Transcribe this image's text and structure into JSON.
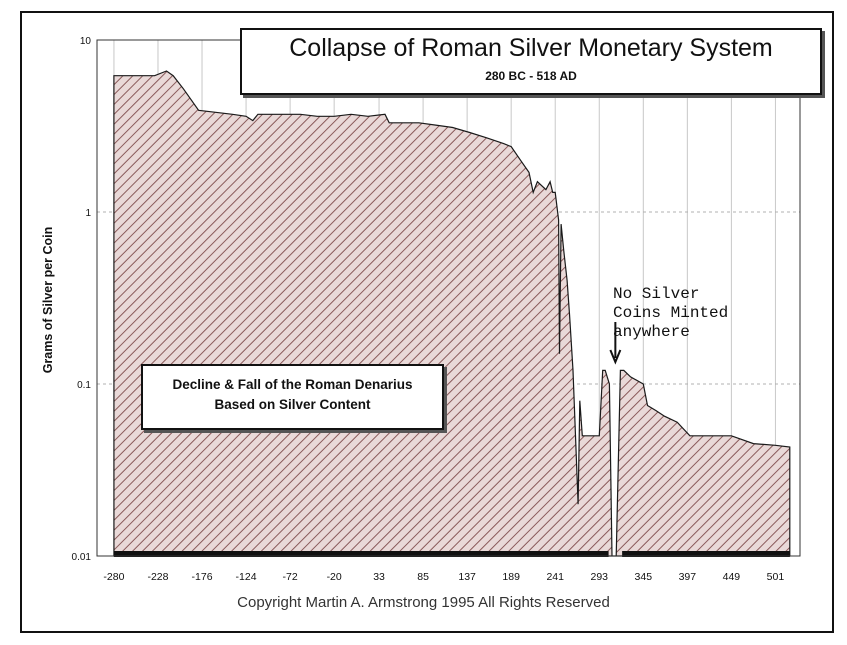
{
  "chart_data": {
    "type": "area",
    "title": "Collapse of Roman Silver Monetary System",
    "subtitle": "280 BC - 518 AD",
    "ylabel": "Grams of Silver per Coin",
    "xlabel": "",
    "y_scale": "log",
    "ylim": [
      0.01,
      10
    ],
    "xlim": [
      -300,
      530
    ],
    "y_ticks": [
      "10",
      "1",
      "0.1",
      "0.01"
    ],
    "x_ticks": [
      "-280",
      "-228",
      "-176",
      "-124",
      "-72",
      "-20",
      "33",
      "85",
      "137",
      "189",
      "241",
      "293",
      "345",
      "397",
      "449",
      "501"
    ],
    "grid": true,
    "colors": {
      "fill": "#e9d9d8",
      "hatch": "#8a5a5a",
      "outline": "#1a1a1a"
    },
    "series": [
      {
        "x": [
          -280,
          -232,
          -218,
          -210,
          -198,
          -180,
          -160,
          -140,
          -124,
          -116,
          -110,
          -100,
          -80,
          -60,
          -40,
          -20,
          0,
          20,
          40,
          45,
          60,
          80,
          100,
          120,
          140,
          160,
          180,
          189,
          200,
          210,
          215,
          220,
          230,
          235,
          238,
          241,
          245,
          246,
          248,
          251,
          255,
          258,
          262,
          265,
          268,
          270,
          273,
          277,
          282,
          288,
          293,
          297,
          300,
          305,
          308,
          313,
          318,
          322,
          330,
          345,
          350,
          360,
          370,
          385,
          400,
          420,
          449,
          475,
          501,
          518
        ],
        "y": [
          6.2,
          6.2,
          6.6,
          6.2,
          5.2,
          3.9,
          3.8,
          3.7,
          3.6,
          3.4,
          3.7,
          3.7,
          3.7,
          3.7,
          3.6,
          3.6,
          3.7,
          3.6,
          3.7,
          3.3,
          3.3,
          3.3,
          3.2,
          3.1,
          2.9,
          2.7,
          2.5,
          2.4,
          2.0,
          1.7,
          1.3,
          1.5,
          1.35,
          1.5,
          1.3,
          1.3,
          0.9,
          0.15,
          0.85,
          0.6,
          0.4,
          0.25,
          0.12,
          0.05,
          0.02,
          0.08,
          0.05,
          0.05,
          0.05,
          0.05,
          0.05,
          0.12,
          0.12,
          0.1,
          0.01,
          0.01,
          0.12,
          0.12,
          0.11,
          0.1,
          0.075,
          0.07,
          0.065,
          0.06,
          0.05,
          0.05,
          0.05,
          0.045,
          0.044,
          0.043
        ]
      }
    ],
    "annotations": [
      "No Silver\nCoins Minted\nanywhere",
      "Decline & Fall of the Roman Denarius",
      "Based on Silver Content"
    ],
    "footer": "Copyright Martin A. Armstrong 1995 All Rights Reserved"
  }
}
